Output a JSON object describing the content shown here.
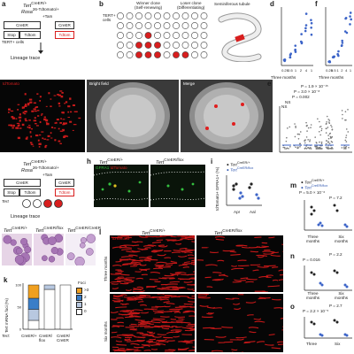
{
  "panels": {
    "a_letter": "a",
    "b_letter": "b",
    "d_letter": "d",
    "f_letter": "f",
    "e_letter": "e",
    "h_letter": "h",
    "i_letter": "i",
    "m_letter": "m",
    "n_letter": "n",
    "o_letter": "o",
    "k_letter": "k",
    "l_letter": "l"
  },
  "panel_a": {
    "gene1": "Tert",
    "gene1_sup": "CreER/+",
    "gene2": "Rosa",
    "gene2_sup": "26-Tdtomato/+",
    "tam": "+Tam",
    "creer": "CreER",
    "stop": "Stop",
    "tdtom": "Tdtom",
    "tdtom2": "Tdtom",
    "cells": "TERT+",
    "cells2": "cells",
    "lineage": "Lineage trace"
  },
  "panel_b": {
    "winner": "Winner clone",
    "winner_sub": "(Self-renewing)",
    "loser": "Loser clone",
    "loser_sub": "(Differentiating)",
    "tubule": "Seminiferous tubule",
    "tert": "TERT+",
    "cells": "cells"
  },
  "panel_c_images": {
    "label_left": "tdTomato",
    "label_mid": "Bright field",
    "label_right": "Merge"
  },
  "panel_g": {
    "gene1": "Tert",
    "gene1_sup": "CreER/+",
    "gene2": "Rosa",
    "gene2_sup": "26-Tdtomato/+",
    "tam": "+Tam",
    "creer": "CreER",
    "stop": "Stop",
    "tdtom": "Tdtom",
    "tert_minus": "Tert",
    "lineage": "Lineage trace"
  },
  "panel_h": {
    "label_left": "Tert",
    "label_left_sup": "CreER/+",
    "label_right": "Tert",
    "label_right_sup": "CreER/flox",
    "gfra1": "GFRA1",
    "tdtomato": "tdTomato"
  },
  "panel_i": {
    "legend1": "Tert",
    "legend1_sup": "CreER/+",
    "legend2": "Tert",
    "legend2_sup": "CreER/flox",
    "ylabel": "tdTomato+ GFRA1+ (%)",
    "x1": "Apr",
    "x2": "Aal",
    "y0": "0",
    "y1": "10",
    "y2": "20"
  },
  "panel_d": {
    "ylabel": "Patch number per testis",
    "xlabel": "Tam (mg)",
    "x_ticks": [
      "0.25",
      "0.5",
      "1",
      "2",
      "4",
      "1"
    ],
    "group1": "Three months",
    "group2": "One year",
    "y_ticks": [
      "0",
      "20",
      "40"
    ]
  },
  "panel_f": {
    "ylabel": "Total patch length (mm)",
    "xlabel": "Tam (mg)",
    "x_ticks": [
      "0.25",
      "0.5",
      "1",
      "2",
      "4",
      "1"
    ],
    "group1": "Three months",
    "group2": "One year",
    "y_ticks": [
      "0",
      "10",
      "20"
    ]
  },
  "panel_e": {
    "ylabel": "Patch length (mm)",
    "xlabel": "Tam (mg)",
    "x_ticks": [
      "0.25",
      "0.5",
      "1",
      "2",
      "4",
      "1"
    ],
    "group1": "Three months",
    "group2": "One year",
    "p1": "P = 1.9 × 10⁻¹⁵",
    "p2": "P = 3.0 × 10⁻⁸",
    "p3": "P = 0.002",
    "ns1": "NS",
    "ns2": "NS",
    "y_ticks": [
      "0",
      "1",
      "2",
      "3"
    ]
  },
  "panel_m": {
    "legend1": "Tert",
    "legend1_sup": "CreER/+",
    "legend2": "Tert",
    "legend2_sup": "CreER/flox",
    "p1": "P = 5.0 × 10⁻⁶",
    "p2": "P = 7.2",
    "ylabel": "Patch number per testis",
    "x1": "Three",
    "x1b": "months",
    "x2": "Six",
    "x2b": "months"
  },
  "panel_n": {
    "p1": "P = 0.016",
    "p2": "P = 2.2",
    "ylabel": "Patch length (mm)",
    "x1": "Three",
    "x1b": "months",
    "x2": "Six",
    "x2b": "months"
  },
  "panel_o": {
    "p1": "P = 2.2 × 10⁻⁵",
    "p2": "P = 2.7",
    "ylabel": "Total patch length (mm)",
    "x1": "Three",
    "x1b": "months",
    "x2": "Six",
    "x2b": "months"
  },
  "panel_j": {
    "label1": "Tert",
    "label1_sup": "CreER/+",
    "label2": "Tert",
    "label2_sup": "CreER/flox",
    "label3": "Tert",
    "label3_sup": "CreER/CreER"
  },
  "panel_k": {
    "ylabel": "Tert mRNA foci (%)",
    "xlabel": "Tert:",
    "x1": "CreER/+",
    "x2": "CreER/ flox",
    "x3": "CreER/ CreER",
    "legend_title": "Foci",
    "legend": [
      ">3",
      "2",
      "1",
      "0"
    ],
    "y_ticks": [
      "0",
      "50",
      "100"
    ]
  },
  "panel_l": {
    "col1": "Tert",
    "col1_sup": "CreER/+",
    "col2": "Tert",
    "col2_sup": "CreER/flox",
    "row1": "Three months",
    "row2": "Six months",
    "tdtom_label": "tdTomato"
  },
  "colors": {
    "accent_blue": "#2f56b0",
    "dot_blue": "#3c64c8",
    "tomato_red": "#e01e1e",
    "foci_3": "#f0a020",
    "foci_2": "#3a7ec8",
    "foci_1": "#b8c8e0",
    "foci_0": "#ffffff"
  },
  "chart_data": [
    {
      "type": "scatter",
      "panel": "d",
      "categories": [
        "0.25",
        "0.5",
        "1",
        "2",
        "4",
        "1 (one year)"
      ],
      "values": [
        4,
        8,
        13,
        22,
        34,
        30
      ],
      "ylabel": "Patch number per testis",
      "ylim": [
        0,
        45
      ]
    },
    {
      "type": "scatter",
      "panel": "f",
      "categories": [
        "0.25",
        "0.5",
        "1",
        "2",
        "4",
        "1 (one year)"
      ],
      "values": [
        1.5,
        3,
        5,
        9,
        16,
        17
      ],
      "ylabel": "Total patch length (mm)",
      "ylim": [
        0,
        22
      ]
    },
    {
      "type": "bar",
      "panel": "k",
      "categories": [
        "CreER/+",
        "CreER/flox",
        "CreER/CreER"
      ],
      "series": [
        {
          "name": ">3",
          "values": [
            30,
            0,
            0
          ]
        },
        {
          "name": "2",
          "values": [
            25,
            0,
            0
          ]
        },
        {
          "name": "1",
          "values": [
            25,
            10,
            0
          ]
        },
        {
          "name": "0",
          "values": [
            20,
            90,
            100
          ]
        }
      ],
      "ylabel": "Tert mRNA foci (%)",
      "ylim": [
        0,
        100
      ]
    }
  ]
}
